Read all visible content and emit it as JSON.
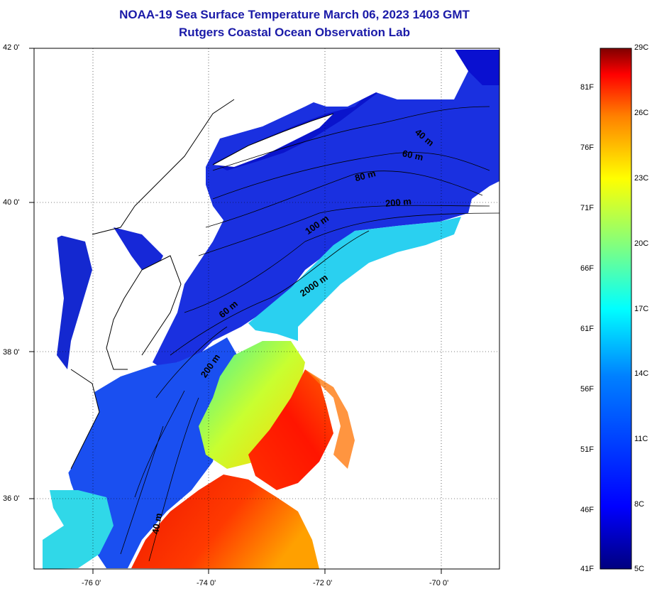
{
  "header": {
    "title": "NOAA-19 Sea Surface Temperature March 06, 2023 1403 GMT",
    "subtitle": "Rutgers Coastal Ocean Observation Lab"
  },
  "map": {
    "lat_labels": [
      "42 0'",
      "40 0'",
      "38 0'",
      "36 0'"
    ],
    "lon_labels": [
      "-76 0'",
      "-74 0'",
      "-72 0'",
      "-70 0'"
    ],
    "contours": [
      "40 m",
      "60 m",
      "80 m",
      "200 m",
      "100 m",
      "2000 m",
      "60 m",
      "200 m",
      "40 m"
    ]
  },
  "colorbar": {
    "fahrenheit": [
      "81F",
      "76F",
      "71F",
      "66F",
      "61F",
      "56F",
      "51F",
      "46F",
      "41F"
    ],
    "celsius": [
      "29C",
      "26C",
      "23C",
      "20C",
      "17C",
      "14C",
      "11C",
      "8C",
      "5C"
    ],
    "colors": [
      "#00007f",
      "#0000ff",
      "#0080ff",
      "#00ffff",
      "#80ff80",
      "#ffff00",
      "#ff8000",
      "#ff0000",
      "#7f0000"
    ]
  }
}
